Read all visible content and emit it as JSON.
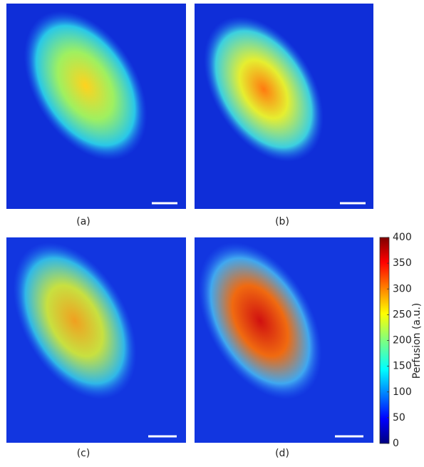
{
  "panels": [
    {
      "label": "(a)"
    },
    {
      "label": "(b)"
    },
    {
      "label": "(c)"
    },
    {
      "label": "(d)"
    }
  ],
  "colorbar": {
    "label": "Perfusion (a.u.)",
    "lim": [
      0,
      400
    ],
    "ticks": [
      0,
      50,
      100,
      150,
      200,
      250,
      300,
      350,
      400
    ]
  }
}
